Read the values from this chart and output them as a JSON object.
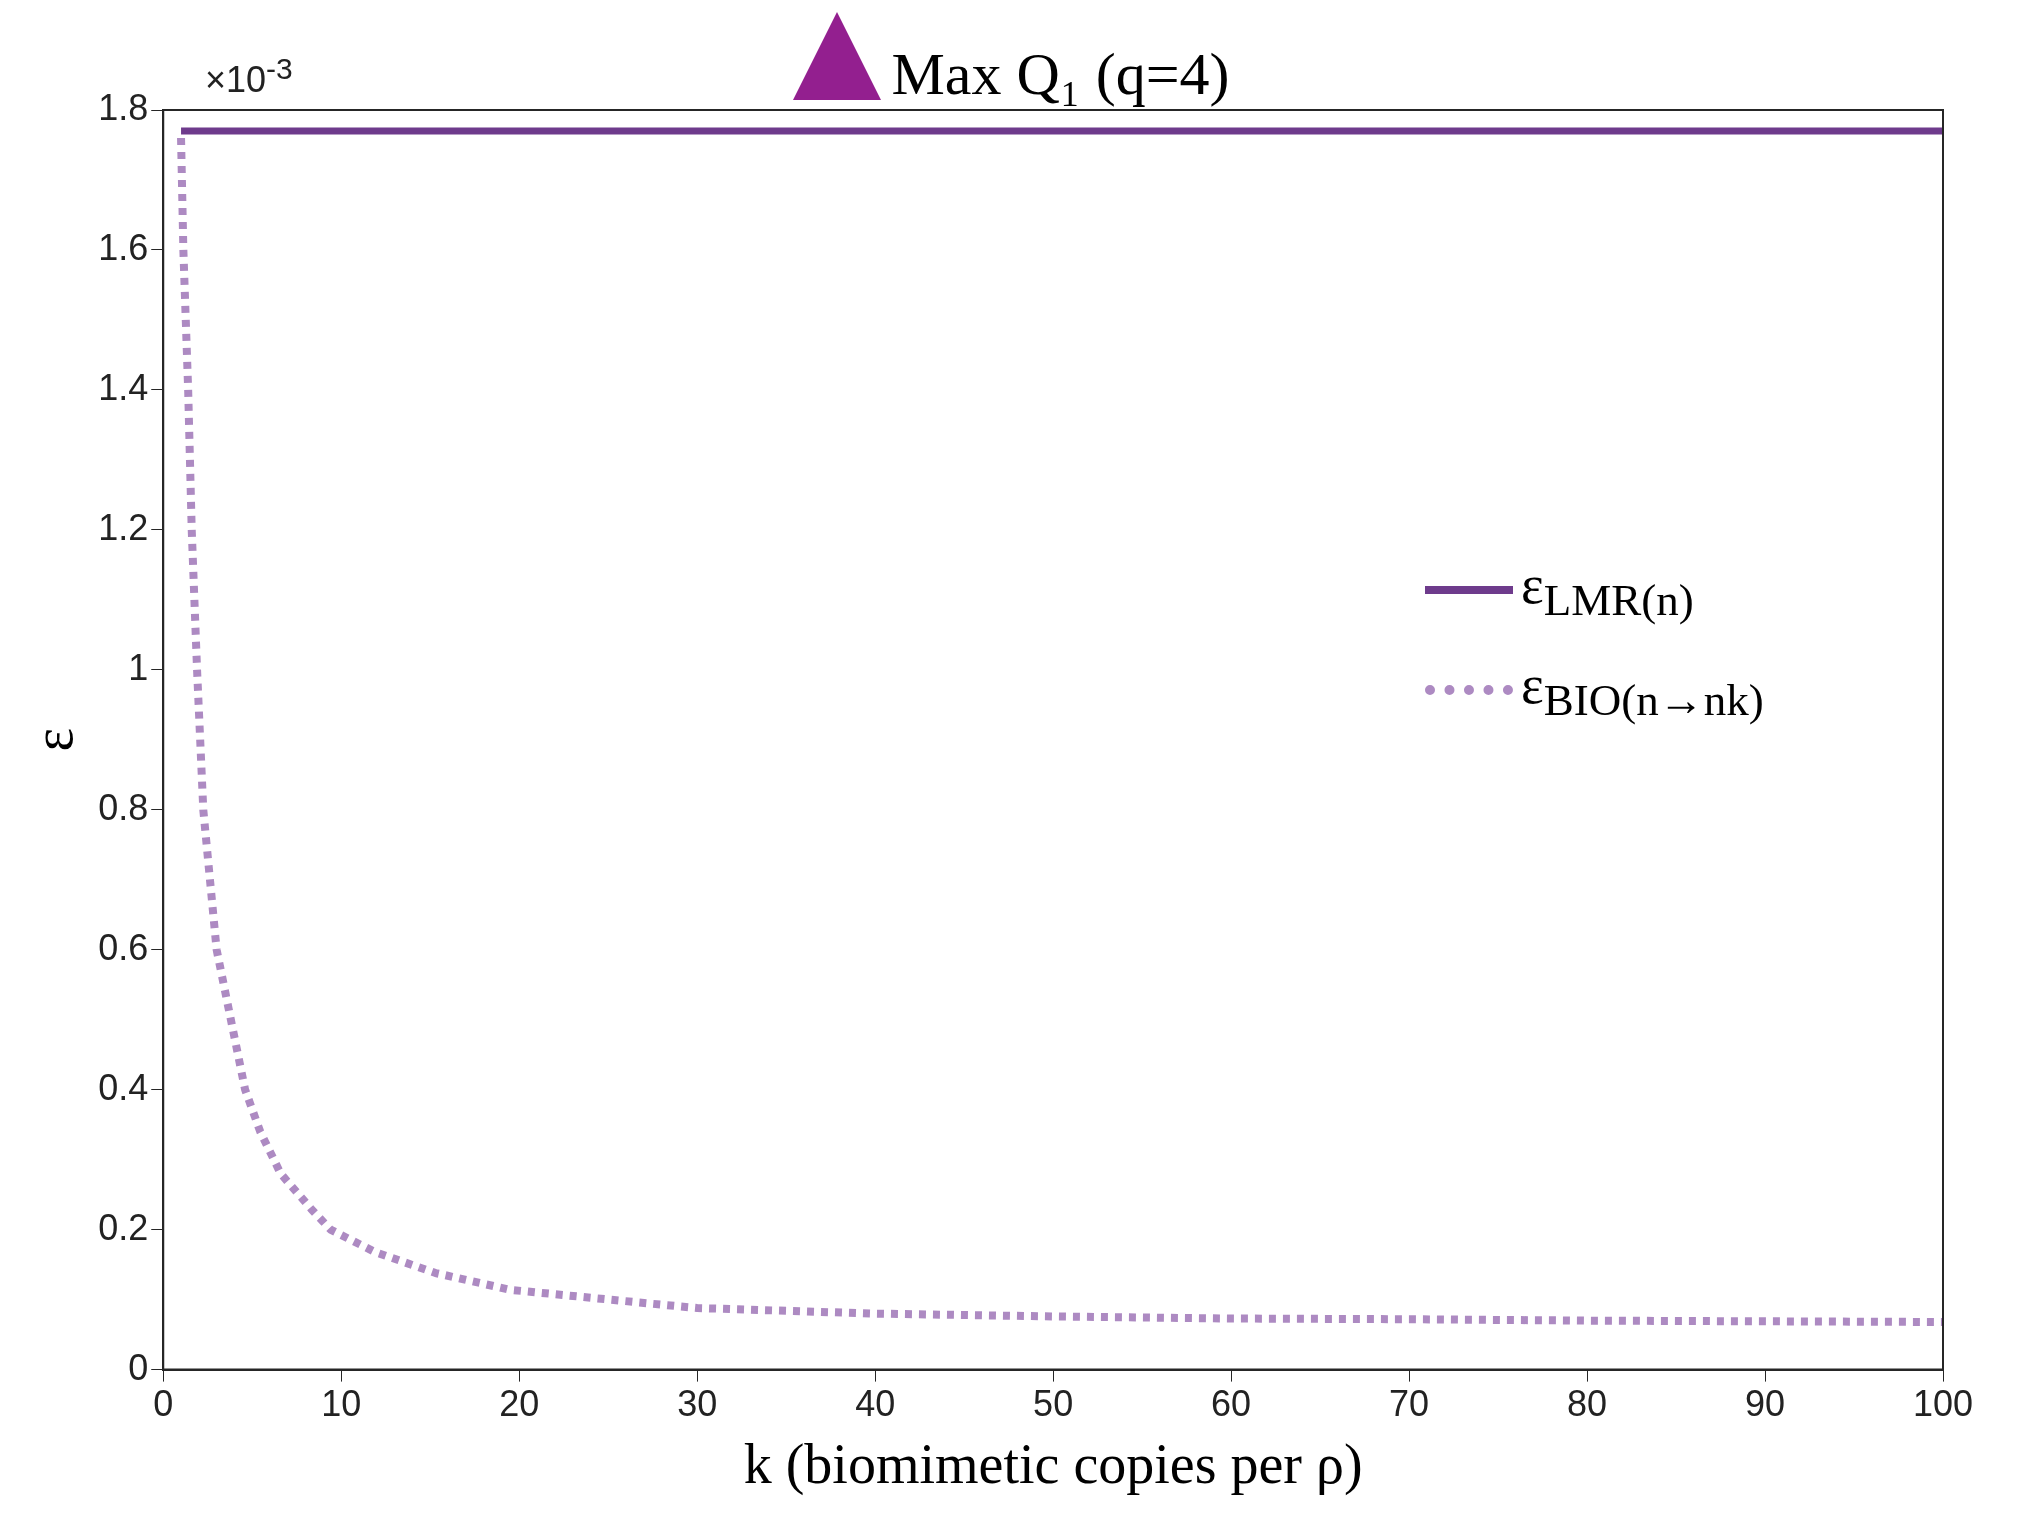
{
  "chart_data": {
    "type": "line",
    "title": "Max Q₁ (q=4)",
    "xlabel": "k (biomimetic copies per ρ)",
    "ylabel": "ε",
    "xlim": [
      0,
      100
    ],
    "xticks": [
      0,
      10,
      20,
      30,
      40,
      50,
      60,
      70,
      80,
      90,
      100
    ],
    "ylim": [
      0,
      1.8
    ],
    "yticks": [
      0,
      0.2,
      0.4,
      0.6,
      0.8,
      1,
      1.2,
      1.4,
      1.6,
      1.8
    ],
    "annotations": [
      "×10$^{-3}$"
    ],
    "grid": false,
    "legend": "right",
    "marker": "none",
    "series": [
      {
        "name": "ε$_{LMR(n)}$",
        "color": "#6e3b8c",
        "line_style": "solid",
        "x": [
          1,
          100
        ],
        "values": [
          1.77,
          1.77
        ]
      },
      {
        "name": "ε$_{BIO(n→nk)}$",
        "color": "#ad8ac2",
        "line_style": "dotted",
        "x": [
          1,
          1.13,
          1.4,
          1.6,
          1.9,
          2.25,
          3,
          4.6,
          5.45,
          6.6,
          8.3,
          9.4,
          11.9,
          15.3,
          19.5,
          27.5,
          30,
          40,
          50,
          60,
          70,
          80,
          90,
          100
        ],
        "values": [
          1.76,
          1.6,
          1.4,
          1.2,
          1,
          0.8,
          0.6,
          0.4,
          0.34,
          0.28,
          0.23,
          0.2,
          0.168,
          0.138,
          0.114,
          0.094,
          0.088,
          0.08,
          0.076,
          0.073,
          0.072,
          0.07,
          0.069,
          0.068
        ]
      }
    ]
  }
}
